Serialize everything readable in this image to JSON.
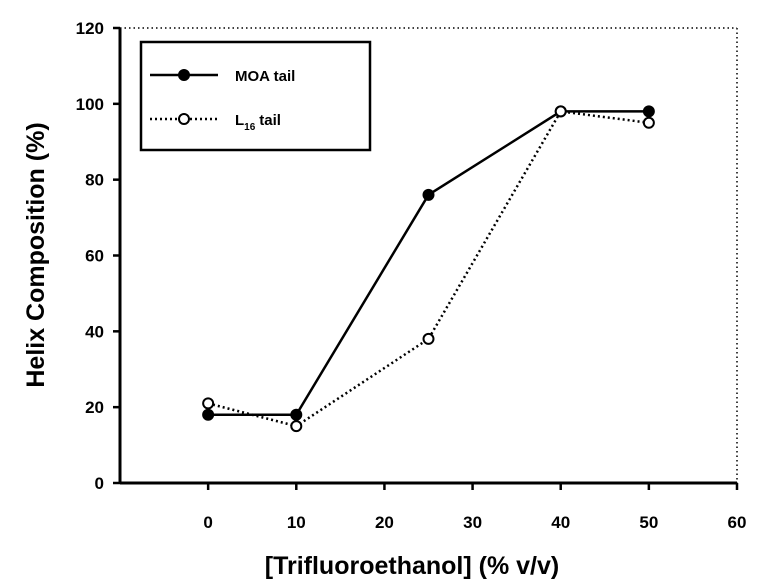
{
  "chart_data": {
    "type": "line",
    "xlabel": "[Trifluoroethanol] (% v/v)",
    "ylabel": "Helix Composition (%)",
    "xlim": [
      -10,
      60
    ],
    "ylim": [
      0,
      120
    ],
    "xticks": [
      0,
      10,
      20,
      30,
      40,
      50,
      60
    ],
    "yticks": [
      0,
      20,
      40,
      60,
      80,
      100,
      120
    ],
    "grid": false,
    "legend_position": "top-left",
    "series": [
      {
        "name": "MOA tail",
        "style": "solid",
        "marker": "filled-circle",
        "color": "#000000",
        "x": [
          0,
          10,
          25,
          40,
          50
        ],
        "y": [
          18,
          18,
          76,
          98,
          98
        ]
      },
      {
        "name": "L",
        "name_subscript": "16",
        "name_suffix": "tail",
        "style": "dotted",
        "marker": "open-circle",
        "color": "#000000",
        "x": [
          0,
          10,
          25,
          40,
          50
        ],
        "y": [
          21,
          15,
          38,
          98,
          95
        ]
      }
    ]
  }
}
